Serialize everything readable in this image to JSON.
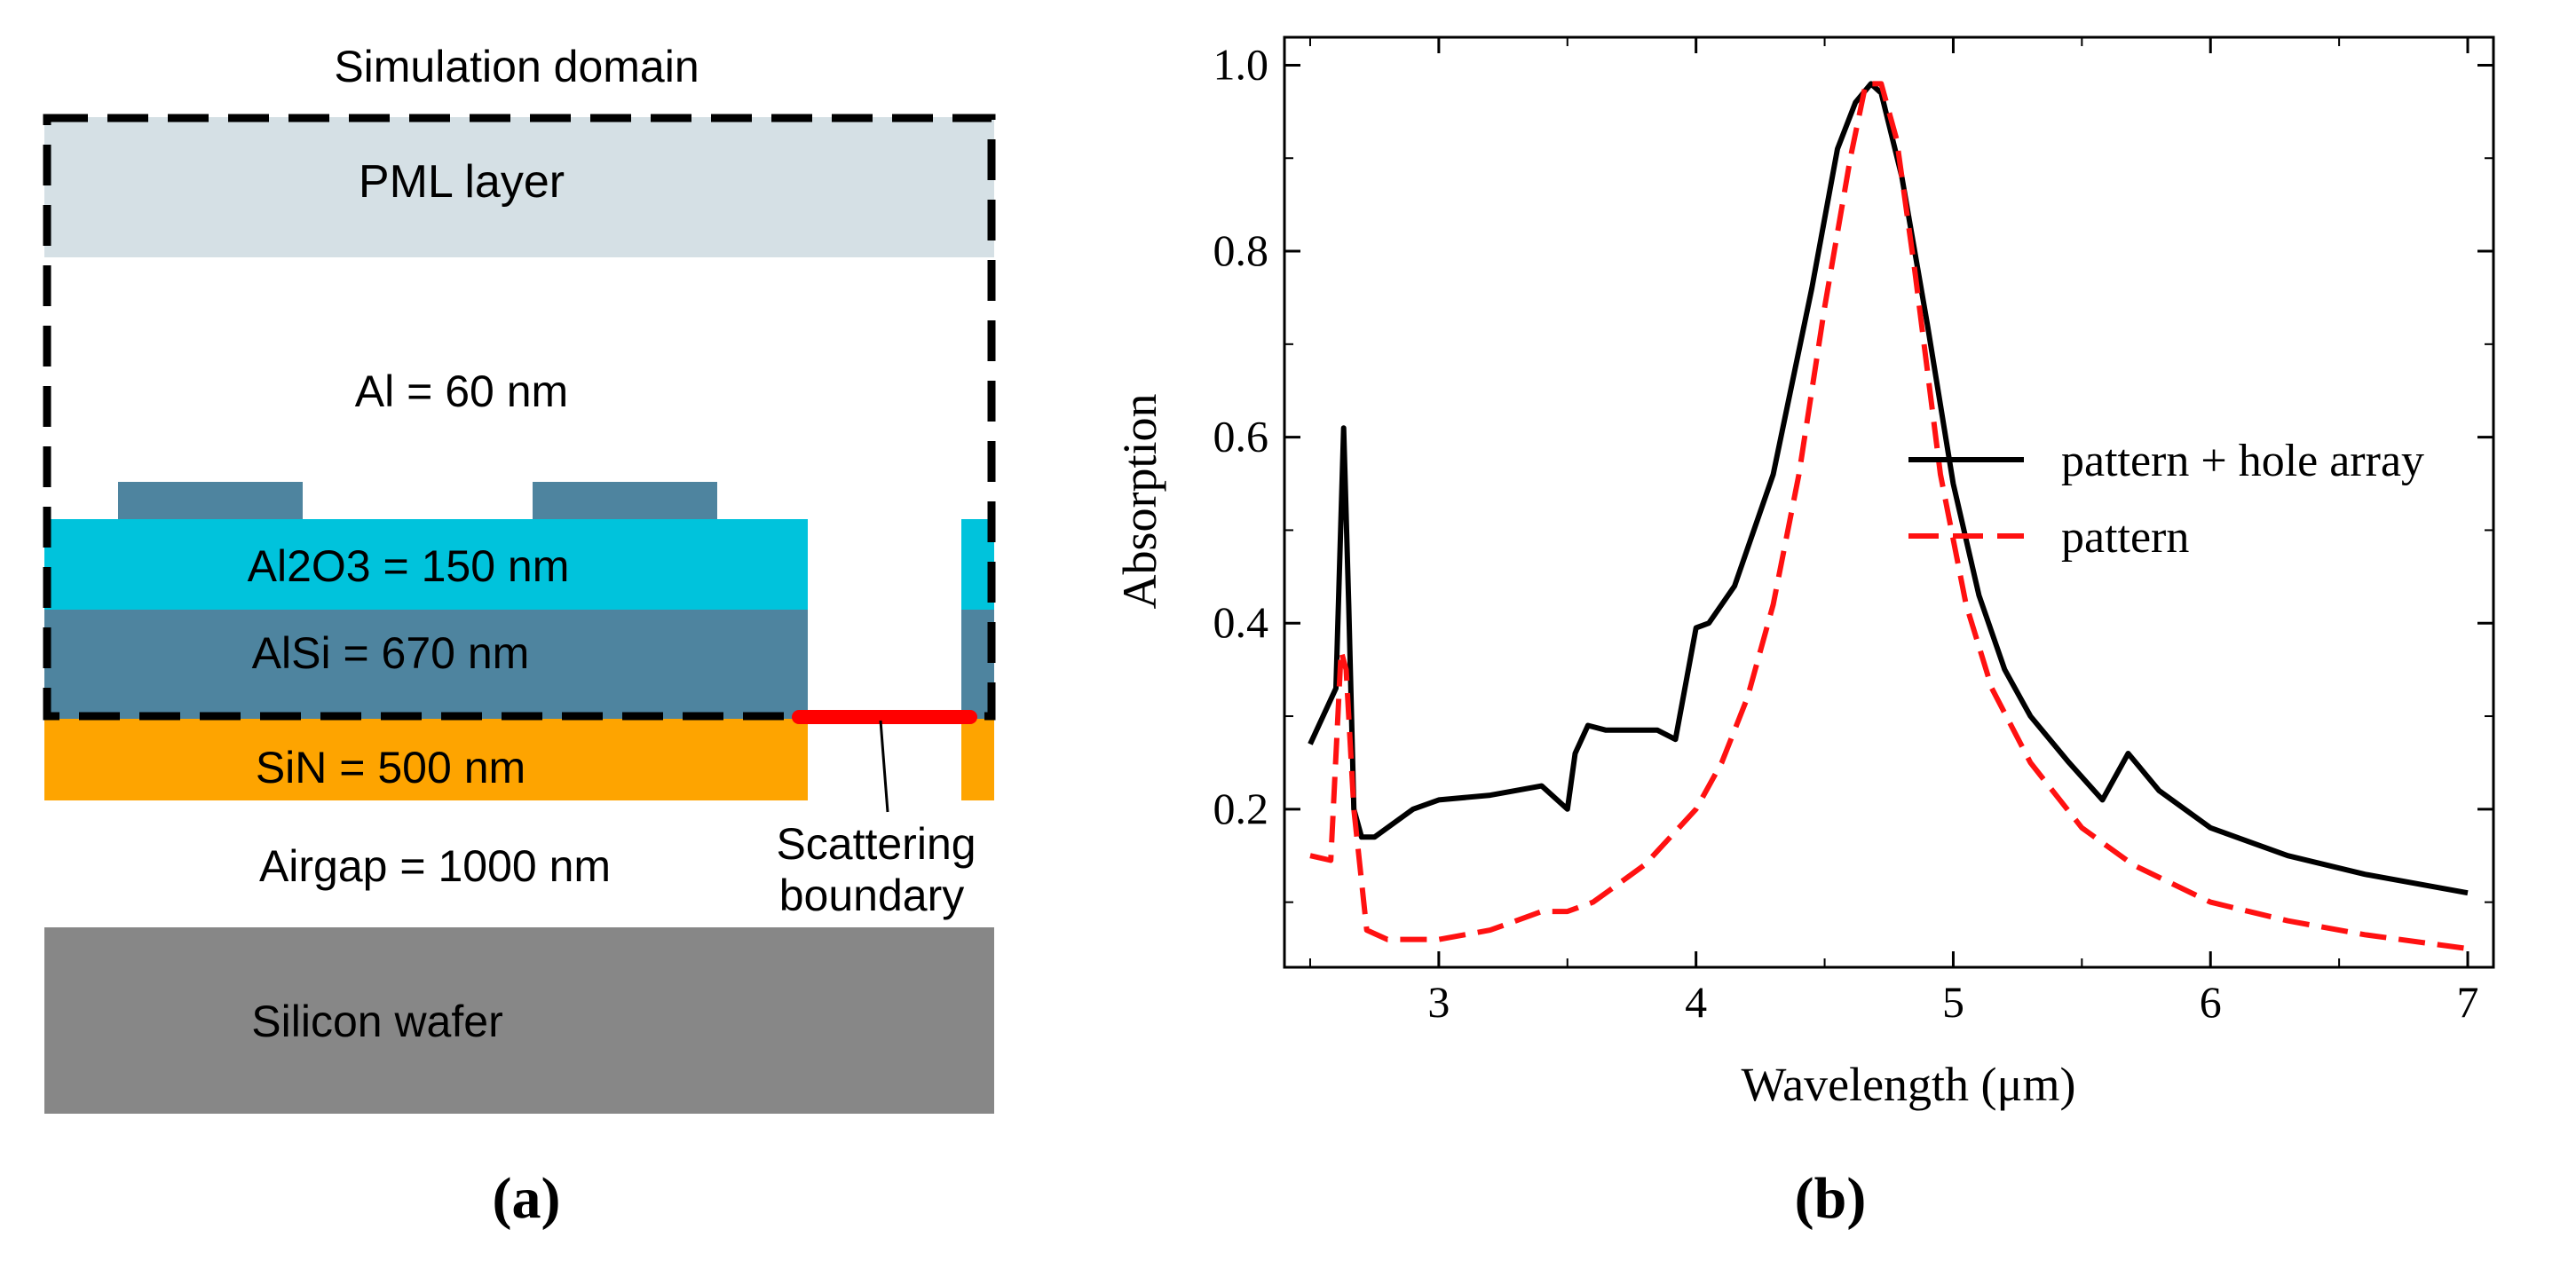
{
  "panel_a": {
    "title": "Simulation domain",
    "layers": {
      "pml": "PML layer",
      "al": "Al = 60 nm",
      "al2o3": "Al2O3 = 150 nm",
      "alsi": "AlSi = 670 nm",
      "sin": "SiN = 500 nm",
      "airgap": "Airgap = 1000 nm",
      "silicon": "Silicon wafer"
    },
    "scattering_label_line1": "Scattering",
    "scattering_label_line2": "boundary",
    "caption": "(a)",
    "colors": {
      "pml": "#d5e0e5",
      "al2o3": "#00c3dc",
      "alsi": "#4e849f",
      "sin": "#fea400",
      "silicon": "#878787",
      "boundary": "#ff0000"
    }
  },
  "panel_b": {
    "caption": "(b)"
  },
  "chart_data": {
    "type": "line",
    "title": "",
    "xlabel": "Wavelength (μm)",
    "ylabel": "Absorption",
    "xlim": [
      2.4,
      7.1
    ],
    "ylim": [
      0.03,
      1.03
    ],
    "xticks": [
      3,
      4,
      5,
      6,
      7
    ],
    "xtick_labels": [
      "3",
      "4",
      "5",
      "6",
      "7"
    ],
    "yticks": [
      0.2,
      0.4,
      0.6,
      0.8,
      1.0
    ],
    "ytick_labels": [
      "0.2",
      "0.4",
      "0.6",
      "0.8",
      "1.0"
    ],
    "grid": false,
    "legend_position": "center-right",
    "series": [
      {
        "name": "pattern + hole array",
        "color": "#000000",
        "style": "solid",
        "x": [
          2.5,
          2.6,
          2.63,
          2.65,
          2.67,
          2.7,
          2.75,
          2.8,
          2.9,
          3.0,
          3.2,
          3.4,
          3.5,
          3.53,
          3.58,
          3.65,
          3.75,
          3.85,
          3.92,
          4.0,
          4.05,
          4.15,
          4.3,
          4.45,
          4.55,
          4.62,
          4.68,
          4.72,
          4.8,
          4.9,
          5.0,
          5.1,
          5.2,
          5.3,
          5.45,
          5.58,
          5.68,
          5.8,
          6.0,
          6.3,
          6.6,
          7.0
        ],
        "y": [
          0.27,
          0.33,
          0.61,
          0.42,
          0.2,
          0.17,
          0.17,
          0.18,
          0.2,
          0.21,
          0.215,
          0.225,
          0.2,
          0.26,
          0.29,
          0.285,
          0.285,
          0.285,
          0.275,
          0.395,
          0.4,
          0.44,
          0.56,
          0.76,
          0.91,
          0.96,
          0.98,
          0.97,
          0.88,
          0.72,
          0.55,
          0.43,
          0.35,
          0.3,
          0.25,
          0.21,
          0.26,
          0.22,
          0.18,
          0.15,
          0.13,
          0.11
        ]
      },
      {
        "name": "pattern",
        "color": "#ff1111",
        "style": "dashed",
        "x": [
          2.5,
          2.58,
          2.62,
          2.64,
          2.67,
          2.72,
          2.8,
          3.0,
          3.2,
          3.4,
          3.5,
          3.6,
          3.7,
          3.8,
          3.9,
          4.0,
          4.1,
          4.2,
          4.3,
          4.4,
          4.5,
          4.6,
          4.66,
          4.72,
          4.78,
          4.85,
          4.95,
          5.05,
          5.15,
          5.3,
          5.5,
          5.7,
          6.0,
          6.3,
          6.6,
          7.0
        ],
        "y": [
          0.15,
          0.145,
          0.37,
          0.35,
          0.2,
          0.07,
          0.06,
          0.06,
          0.07,
          0.09,
          0.09,
          0.1,
          0.12,
          0.14,
          0.17,
          0.2,
          0.25,
          0.32,
          0.42,
          0.56,
          0.74,
          0.9,
          0.98,
          0.98,
          0.92,
          0.78,
          0.56,
          0.42,
          0.33,
          0.25,
          0.18,
          0.14,
          0.1,
          0.08,
          0.065,
          0.05
        ]
      }
    ]
  }
}
